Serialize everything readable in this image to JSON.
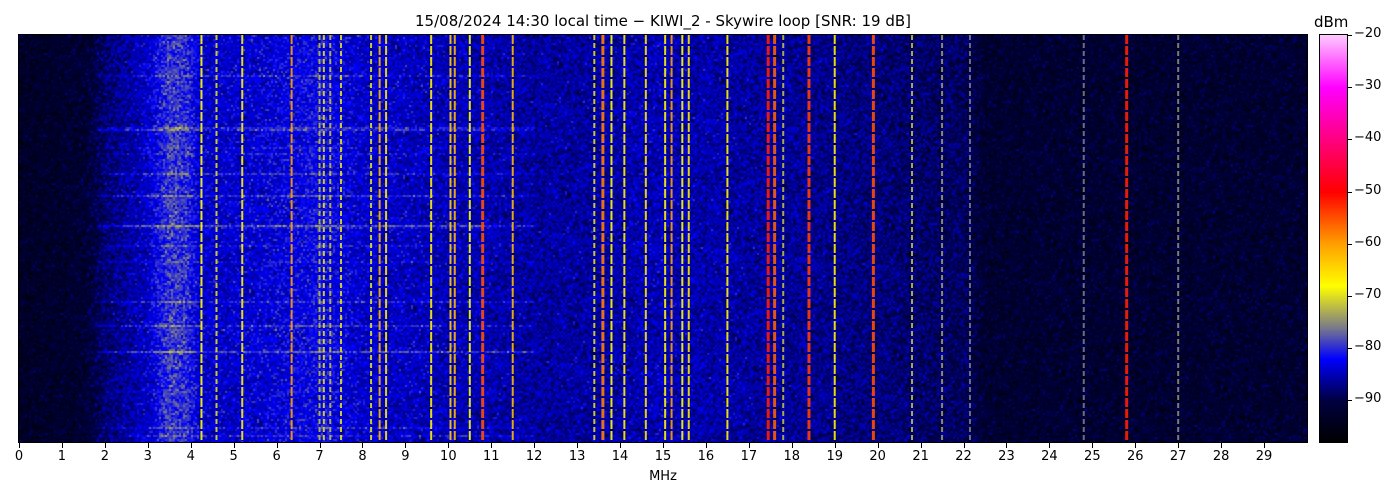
{
  "chart_data": {
    "type": "heatmap",
    "title": "15/08/2024 14:30 local time - KIWI_2 - Skywire loop [SNR: 19 dB]",
    "xlabel": "MHz",
    "xlim": [
      0,
      30
    ],
    "x_ticks": [
      "0",
      "1",
      "2",
      "3",
      "4",
      "5",
      "6",
      "7",
      "8",
      "9",
      "10",
      "11",
      "12",
      "13",
      "14",
      "15",
      "16",
      "17",
      "18",
      "19",
      "20",
      "21",
      "22",
      "23",
      "24",
      "25",
      "26",
      "27",
      "28",
      "29"
    ],
    "colorbar": {
      "label": "dBm",
      "clim": [
        -98,
        -20
      ],
      "ticks": [
        "-20",
        "-30",
        "-40",
        "-50",
        "-60",
        "-70",
        "-80",
        "-90"
      ],
      "tick_values": [
        -20,
        -30,
        -40,
        -50,
        -60,
        -70,
        -80,
        -90
      ],
      "colormap_stops": [
        [
          -98,
          "#000000"
        ],
        [
          -90,
          "#000040"
        ],
        [
          -82,
          "#0000ff"
        ],
        [
          -76,
          "#7a7a8a"
        ],
        [
          -68,
          "#ffff00"
        ],
        [
          -60,
          "#ffa000"
        ],
        [
          -50,
          "#ff0000"
        ],
        [
          -40,
          "#ff0080"
        ],
        [
          -30,
          "#ff00ff"
        ],
        [
          -20,
          "#ffc8ff"
        ]
      ]
    },
    "noise_floor_dbm": [
      [
        0,
        -93
      ],
      [
        1.5,
        -92
      ],
      [
        2,
        -88
      ],
      [
        3,
        -84
      ],
      [
        3.5,
        -79
      ],
      [
        3.9,
        -80
      ],
      [
        4.2,
        -84
      ],
      [
        5,
        -84
      ],
      [
        7,
        -82
      ],
      [
        8,
        -84
      ],
      [
        12,
        -86
      ],
      [
        13,
        -86
      ],
      [
        15,
        -85
      ],
      [
        17,
        -86
      ],
      [
        19,
        -87
      ],
      [
        22,
        -89
      ],
      [
        22.5,
        -92
      ],
      [
        30,
        -92
      ]
    ],
    "signals": [
      {
        "mhz": 4.25,
        "dbm": -68
      },
      {
        "mhz": 4.6,
        "dbm": -70
      },
      {
        "mhz": 5.2,
        "dbm": -67
      },
      {
        "mhz": 6.35,
        "dbm": -60
      },
      {
        "mhz": 7.0,
        "dbm": -72
      },
      {
        "mhz": 7.1,
        "dbm": -70
      },
      {
        "mhz": 7.25,
        "dbm": -72
      },
      {
        "mhz": 7.5,
        "dbm": -70
      },
      {
        "mhz": 8.2,
        "dbm": -70
      },
      {
        "mhz": 8.4,
        "dbm": -62
      },
      {
        "mhz": 8.55,
        "dbm": -66
      },
      {
        "mhz": 9.6,
        "dbm": -67
      },
      {
        "mhz": 10.05,
        "dbm": -64
      },
      {
        "mhz": 10.15,
        "dbm": -62
      },
      {
        "mhz": 10.5,
        "dbm": -68
      },
      {
        "mhz": 10.8,
        "dbm": -55
      },
      {
        "mhz": 11.5,
        "dbm": -62
      },
      {
        "mhz": 13.4,
        "dbm": -70
      },
      {
        "mhz": 13.6,
        "dbm": -58
      },
      {
        "mhz": 13.8,
        "dbm": -68
      },
      {
        "mhz": 14.1,
        "dbm": -67
      },
      {
        "mhz": 14.6,
        "dbm": -66
      },
      {
        "mhz": 15.05,
        "dbm": -67
      },
      {
        "mhz": 15.2,
        "dbm": -60
      },
      {
        "mhz": 15.45,
        "dbm": -68
      },
      {
        "mhz": 15.6,
        "dbm": -66
      },
      {
        "mhz": 16.5,
        "dbm": -67
      },
      {
        "mhz": 17.45,
        "dbm": -52
      },
      {
        "mhz": 17.6,
        "dbm": -56
      },
      {
        "mhz": 17.8,
        "dbm": -72
      },
      {
        "mhz": 18.4,
        "dbm": -54
      },
      {
        "mhz": 19.0,
        "dbm": -67
      },
      {
        "mhz": 19.9,
        "dbm": -55
      },
      {
        "mhz": 20.8,
        "dbm": -72
      },
      {
        "mhz": 21.5,
        "dbm": -74
      },
      {
        "mhz": 22.15,
        "dbm": -76
      },
      {
        "mhz": 24.8,
        "dbm": -76
      },
      {
        "mhz": 25.8,
        "dbm": -52
      },
      {
        "mhz": 27.0,
        "dbm": -75
      }
    ]
  }
}
